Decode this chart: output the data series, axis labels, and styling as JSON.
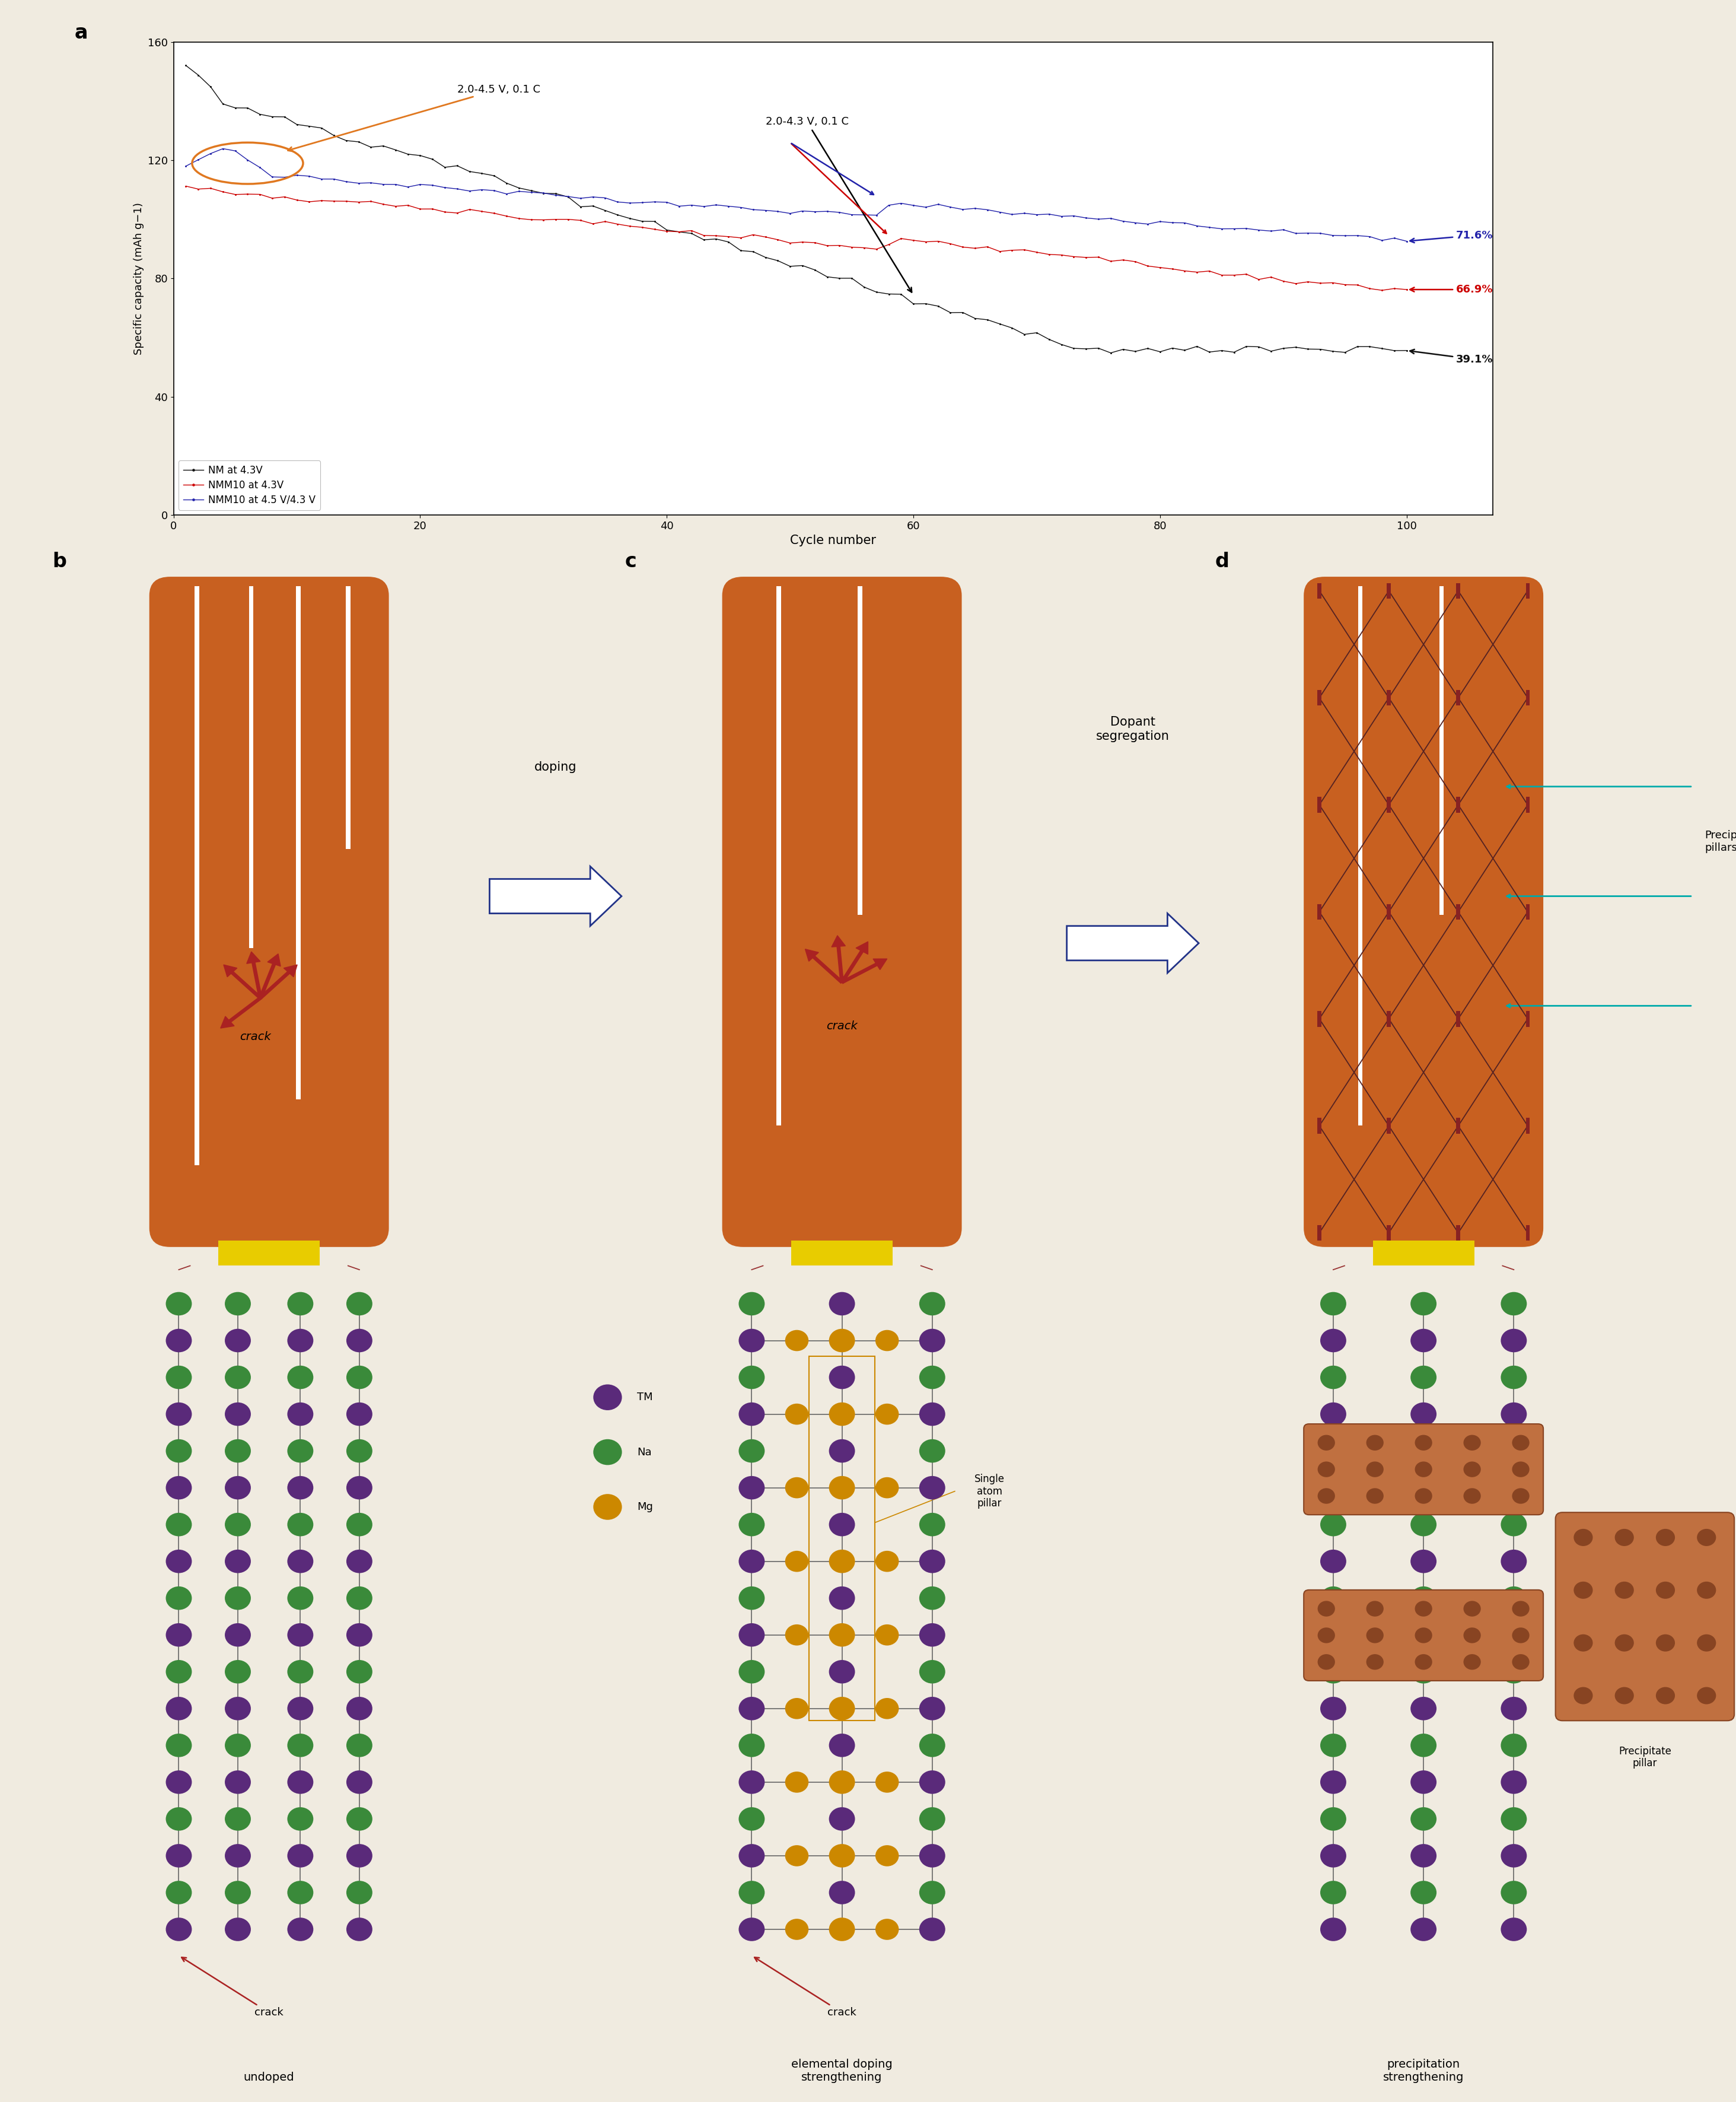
{
  "fig_width": 29.27,
  "fig_height": 35.43,
  "bg_color": "#f0ebe0",
  "panel_a": {
    "ylim": [
      0,
      160
    ],
    "xlim": [
      0,
      107
    ],
    "yticks": [
      0,
      40,
      80,
      120,
      160
    ],
    "xticks": [
      0,
      20,
      40,
      60,
      80,
      100
    ],
    "ylabel": "Specific capacity (mAh g−1)",
    "xlabel": "Cycle number",
    "annotation_1": "2.0-4.5 V, 0.1 C",
    "annotation_2": "2.0-4.3 V, 0.1 C",
    "label_nm": "NM at 4.3V",
    "label_nmm10_43": "NMM10 at 4.3V",
    "label_nmm10_45": "NMM10 at 4.5 V/4.3 V",
    "color_nm": "#111111",
    "color_nmm10_43": "#cc0000",
    "color_nmm10_45": "#2222aa",
    "pct_nm": "39.1%",
    "pct_nmm10_43": "66.9%",
    "pct_nmm10_45": "71.6%"
  },
  "orange_annot_color": "#e07820",
  "crack_arrow_color": "#aa2222",
  "cyan_arrow_color": "#00aaaa",
  "dark_grid_color": "#552222",
  "yellow_color": "#e8cc00",
  "body_color": "#c86020",
  "body_color2": "#c86828",
  "white_crack": "#ffffff",
  "tm_color": "#5a2a7a",
  "na_color": "#3a8a3a",
  "mg_color": "#cc8800",
  "precip_color": "#c07040",
  "precip_dot_color": "#884422",
  "navy_arrow": "#223388"
}
